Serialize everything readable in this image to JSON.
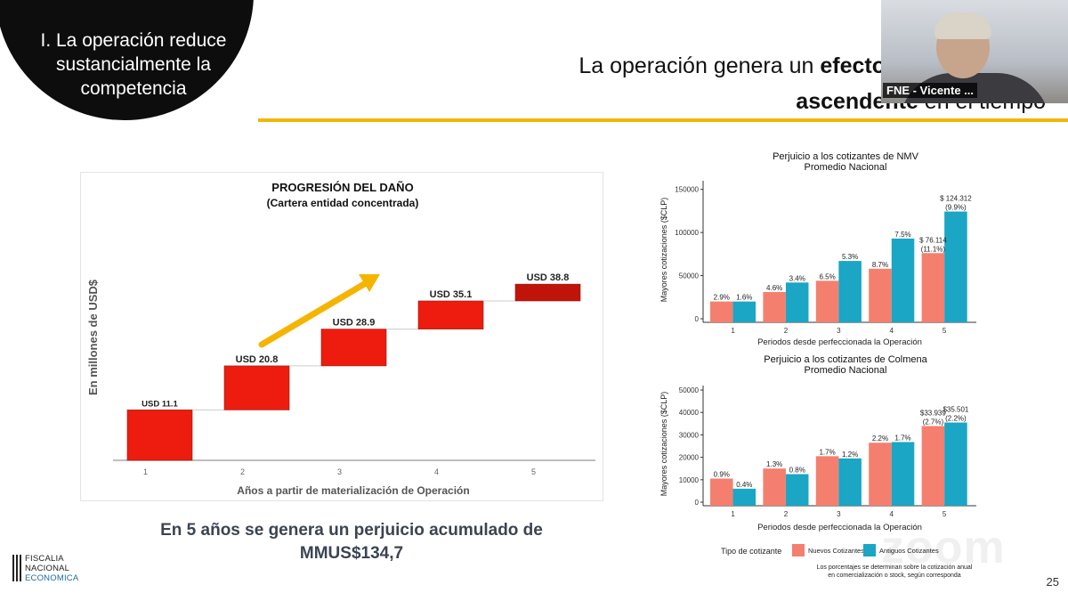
{
  "section": {
    "title_lines": [
      "I. La operación reduce",
      "sustancialmente la",
      "competencia"
    ]
  },
  "slide_title": {
    "normal1": "La operación genera un ",
    "bold1": "efecto",
    "bold2": "ascendente",
    "normal2": " en el tiempo"
  },
  "video": {
    "participant_name": "FNE - Vicente ..."
  },
  "summary": {
    "line1": "En 5 años se genera un perjuicio acumulado de",
    "line2": "MMUS$134,7"
  },
  "logo": {
    "line1": "FISCALIA",
    "line2": "NACIONAL",
    "line3": "ECONOMICA"
  },
  "page_number": "25",
  "watermark": "zoom",
  "colors": {
    "accent": "#f2b705",
    "nuevos": "#f47f6f",
    "antiguos": "#1aa6c4",
    "waterfall_bar": "#ee1c0e"
  },
  "chart_data": [
    {
      "type": "bar",
      "title": "PROGRESIÓN DEL DAÑO",
      "subtitle": "(Cartera entidad concentrada)",
      "xlabel": "Años a partir de  materialización de Operación",
      "ylabel": "En millones de USD$",
      "categories": [
        "1",
        "2",
        "3",
        "4",
        "5"
      ],
      "values": [
        11.1,
        20.8,
        28.9,
        35.1,
        38.8
      ],
      "data_labels": [
        "USD 11.1",
        "USD 20.8",
        "USD 28.9",
        "USD 35.1",
        "USD 38.8"
      ],
      "style": "waterfall"
    },
    {
      "type": "bar",
      "title": "Perjuicio a los cotizantes de NMV",
      "subtitle": "Promedio Nacional",
      "xlabel": "Periodos desde perfeccionada la Operación",
      "ylabel": "Mayores cotizaciones ($CLP)",
      "ylim": [
        0,
        160000
      ],
      "yticks": [
        "0",
        "50000",
        "100000",
        "150000"
      ],
      "categories": [
        "1",
        "2",
        "3",
        "4",
        "5"
      ],
      "series": [
        {
          "name": "Nuevos Cotizantes",
          "values": [
            20000,
            31000,
            44000,
            58000,
            76114
          ],
          "labels": [
            "2.9%",
            "4.6%",
            "6.5%",
            "8.7%",
            "$ 76.114\n(11.1%)"
          ]
        },
        {
          "name": "Antiguos Cotizantes",
          "values": [
            20000,
            42000,
            67000,
            93000,
            124312
          ],
          "labels": [
            "1.6%",
            "3.4%",
            "5.3%",
            "7.5%",
            "$ 124.312\n(9.9%)"
          ]
        }
      ]
    },
    {
      "type": "bar",
      "title": "Perjuicio a los cotizantes de Colmena",
      "subtitle": "Promedio Nacional",
      "xlabel": "Periodos desde perfeccionada la Operación",
      "ylabel": "Mayores cotizaciones ($CLP)",
      "ylim": [
        0,
        52000
      ],
      "yticks": [
        "0",
        "10000",
        "20000",
        "30000",
        "40000",
        "50000"
      ],
      "categories": [
        "1",
        "2",
        "3",
        "4",
        "5"
      ],
      "series": [
        {
          "name": "Nuevos Cotizantes",
          "values": [
            10500,
            15000,
            20500,
            26500,
            33939
          ],
          "labels": [
            "0.9%",
            "1.3%",
            "1.7%",
            "2.2%",
            "$33.939\n(2.7%)"
          ]
        },
        {
          "name": "Antiguos Cotizantes",
          "values": [
            6000,
            12500,
            19500,
            26800,
            35501
          ],
          "labels": [
            "0.4%",
            "0.8%",
            "1.2%",
            "1.7%",
            "$35.501\n(2.2%)"
          ]
        }
      ],
      "legend": {
        "title": "Tipo de cotizante",
        "entries": [
          "Nuevos Cotizantes",
          "Antiguos Cotizantes"
        ],
        "placement": "bottom"
      },
      "footnote": [
        "Los porcentajes se determinan sobre la cotización anual",
        "en comercialización o stock, según corresponda"
      ]
    }
  ]
}
